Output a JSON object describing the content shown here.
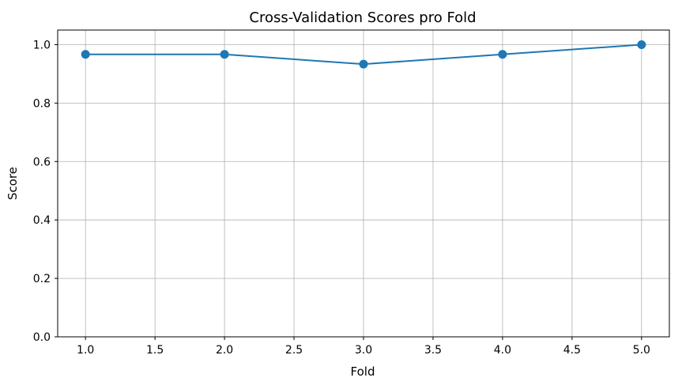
{
  "chart_data": {
    "type": "line",
    "title": "Cross-Validation Scores pro Fold",
    "xlabel": "Fold",
    "ylabel": "Score",
    "xlim": [
      0.8,
      5.2
    ],
    "ylim": [
      0.0,
      1.05
    ],
    "xticks": [
      1.0,
      1.5,
      2.0,
      2.5,
      3.0,
      3.5,
      4.0,
      4.5,
      5.0
    ],
    "xtick_labels": [
      "1.0",
      "1.5",
      "2.0",
      "2.5",
      "3.0",
      "3.5",
      "4.0",
      "4.5",
      "5.0"
    ],
    "yticks": [
      0.0,
      0.2,
      0.4,
      0.6,
      0.8,
      1.0
    ],
    "ytick_labels": [
      "0.0",
      "0.2",
      "0.4",
      "0.6",
      "0.8",
      "1.0"
    ],
    "grid": true,
    "series": [
      {
        "x": [
          1,
          2,
          3,
          4,
          5
        ],
        "values": [
          0.9667,
          0.9667,
          0.9333,
          0.9667,
          1.0
        ],
        "color": "#1f77b4",
        "marker": "circle"
      }
    ]
  }
}
